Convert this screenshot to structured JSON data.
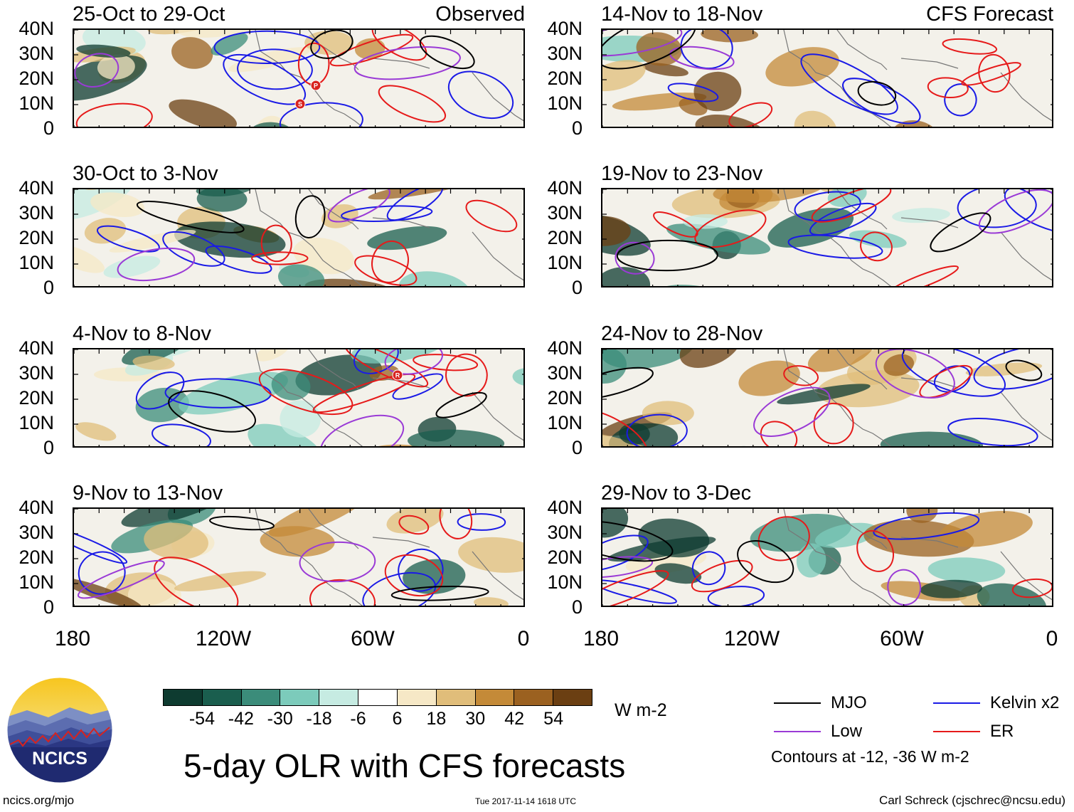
{
  "chart_data": {
    "type": "heatmap",
    "title": "5-day OLR with CFS forecasts",
    "units": "W m-2",
    "y_ticks": [
      "40N",
      "30N",
      "20N",
      "10N",
      "0"
    ],
    "x_ticks": [
      "180",
      "120W",
      "60W",
      "0"
    ],
    "observed_label": "Observed",
    "forecast_label": "CFS Forecast",
    "panels": [
      {
        "title": "25-Oct to 29-Oct",
        "label_key": "observed",
        "storms": [
          "P",
          "S"
        ]
      },
      {
        "title": "30-Oct to 3-Nov",
        "label_key": "",
        "storms": []
      },
      {
        "title": "4-Nov to 8-Nov",
        "label_key": "",
        "storms": [
          "R"
        ]
      },
      {
        "title": "9-Nov to 13-Nov",
        "label_key": "",
        "storms": []
      },
      {
        "title": "14-Nov to 18-Nov",
        "label_key": "forecast",
        "storms": []
      },
      {
        "title": "19-Nov to 23-Nov",
        "label_key": "",
        "storms": []
      },
      {
        "title": "24-Nov to 28-Nov",
        "label_key": "",
        "storms": []
      },
      {
        "title": "29-Nov to 3-Dec",
        "label_key": "",
        "storms": []
      }
    ],
    "colorbar": {
      "labels": [
        "-54",
        "-42",
        "-30",
        "-18",
        "-6",
        "6",
        "18",
        "30",
        "42",
        "54"
      ],
      "colors": [
        "#0e3b30",
        "#1a5e4e",
        "#3b8c7a",
        "#7ccbbb",
        "#c6ebe2",
        "#ffffff",
        "#f6e8c6",
        "#e0bd7a",
        "#c48a38",
        "#9b6120",
        "#6b3f12"
      ]
    },
    "legend": [
      {
        "name": "MJO",
        "color": "#000000"
      },
      {
        "name": "Kelvin x2",
        "color": "#1a1ae6"
      },
      {
        "name": "Low",
        "color": "#9a3ad6"
      },
      {
        "name": "ER",
        "color": "#e61a1a"
      }
    ],
    "contours_note": "Contours at -12, -36 W m-2"
  },
  "footer": {
    "left": "ncics.org/mjo",
    "timestamp": "Tue 2017-11-14 1618 UTC",
    "author": "Carl Schreck (cjschrec@ncsu.edu)",
    "logo_text": "NCICS"
  }
}
